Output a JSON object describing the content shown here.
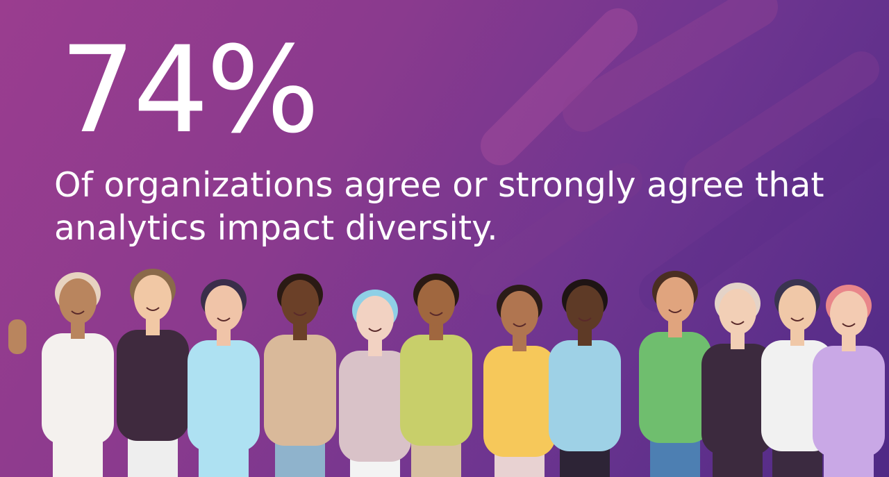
{
  "stat": {
    "value": "74%",
    "caption_lines": [
      "Of organizations agree or strongly agree that",
      "analytics impact diversity."
    ]
  }
}
